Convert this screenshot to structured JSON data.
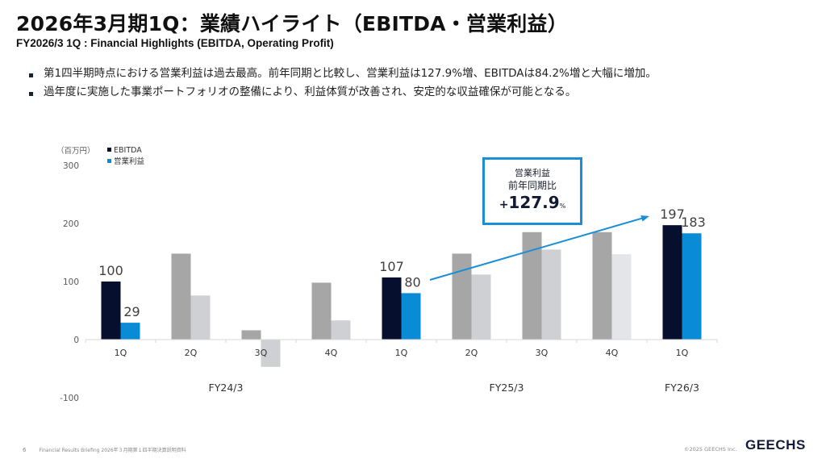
{
  "header": {
    "title": "2026年3月期1Q：業績ハイライト（EBITDA・営業利益）",
    "subtitle": "FY2026/3 1Q : Financial Highlights (EBITDA, Operating Profit)"
  },
  "bullets": [
    "第1四半期時点における営業利益は過去最高。前年同期と比較し、営業利益は127.9%増、EBITDAは84.2%増と大幅に増加。",
    "過年度に実施した事業ポートフォリオの整備により、利益体質が改善され、安定的な収益確保が可能となる。"
  ],
  "callout": {
    "line1": "営業利益",
    "line2": "前年同期比",
    "sign": "+",
    "value": "127.9",
    "unit": "%"
  },
  "colors": {
    "ebitda_highlight": "#070f2e",
    "op_highlight": "#0a8bd6",
    "ebitda_past": "#a6a6a6",
    "op_past": "#cfd0d4",
    "op_past_light": "#e4e5e8",
    "arrow": "#1a8fd6"
  },
  "chart_data": {
    "type": "bar",
    "title": "",
    "unit_label": "（百万円）",
    "xlabel": "",
    "ylabel": "",
    "ylim": [
      -100,
      300
    ],
    "yticks": [
      300,
      200,
      100,
      0,
      -100
    ],
    "grid": false,
    "legend_position": "top-left",
    "categories": [
      "1Q",
      "2Q",
      "3Q",
      "4Q",
      "1Q",
      "2Q",
      "3Q",
      "4Q",
      "1Q"
    ],
    "groups": [
      {
        "label": "FY24/3",
        "span": [
          0,
          3
        ]
      },
      {
        "label": "FY25/3",
        "span": [
          4,
          7
        ]
      },
      {
        "label": "FY26/3",
        "span": [
          8,
          8
        ]
      }
    ],
    "highlighted": [
      0,
      4,
      8
    ],
    "series": [
      {
        "name": "EBITDA",
        "values": [
          100,
          148,
          16,
          98,
          107,
          148,
          185,
          185,
          197
        ]
      },
      {
        "name": "営業利益",
        "values": [
          29,
          76,
          -47,
          33,
          80,
          112,
          155,
          147,
          183
        ]
      }
    ],
    "data_labels": {
      "EBITDA": {
        "0": "100",
        "4": "107",
        "8": "197"
      },
      "営業利益": {
        "0": "29",
        "4": "80",
        "8": "183"
      }
    }
  },
  "footer": {
    "page": "6",
    "doc": "Financial Results Briefing 2026年３月期第１四半期決算説明資料",
    "copyright": "©2025 GEECHS Inc.",
    "logo": "GEECHS"
  }
}
